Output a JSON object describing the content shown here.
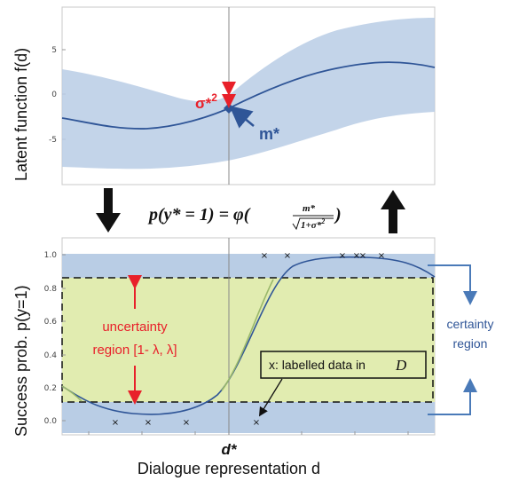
{
  "top_plot": {
    "ylabel": "Latent function f(d)",
    "ytick_labels": [
      "5",
      "0",
      "-5"
    ],
    "sigma_label": "σ*",
    "sigma_sup": "2",
    "mean_label": "m*"
  },
  "formula": {
    "lhs": "p(y* = 1) = φ(",
    "num": "m*",
    "den": "1+σ*",
    "den_sup": "2",
    "close": ")"
  },
  "bottom_plot": {
    "ylabel": "Success prob. p(y=1)",
    "ytick_labels": [
      "1.0",
      "0.8",
      "0.6",
      "0.4",
      "0.2",
      "0.0"
    ],
    "uncertainty_line1": "uncertainty",
    "uncertainty_line2": "region [1- λ, λ]",
    "certainty_line1": "certainty",
    "certainty_line2": "region",
    "data_box_text": "x: labelled data in",
    "data_box_symbol": "D",
    "marker_symbol": "×"
  },
  "x_axis": {
    "d_star_label": "d*",
    "xlabel": "Dialogue representation d"
  },
  "colors": {
    "band_fill": "#b9cde5",
    "curve": "#2f5597",
    "uncertainty_fill": "#e1ecb0",
    "red": "#e8202a",
    "black": "#111111"
  }
}
